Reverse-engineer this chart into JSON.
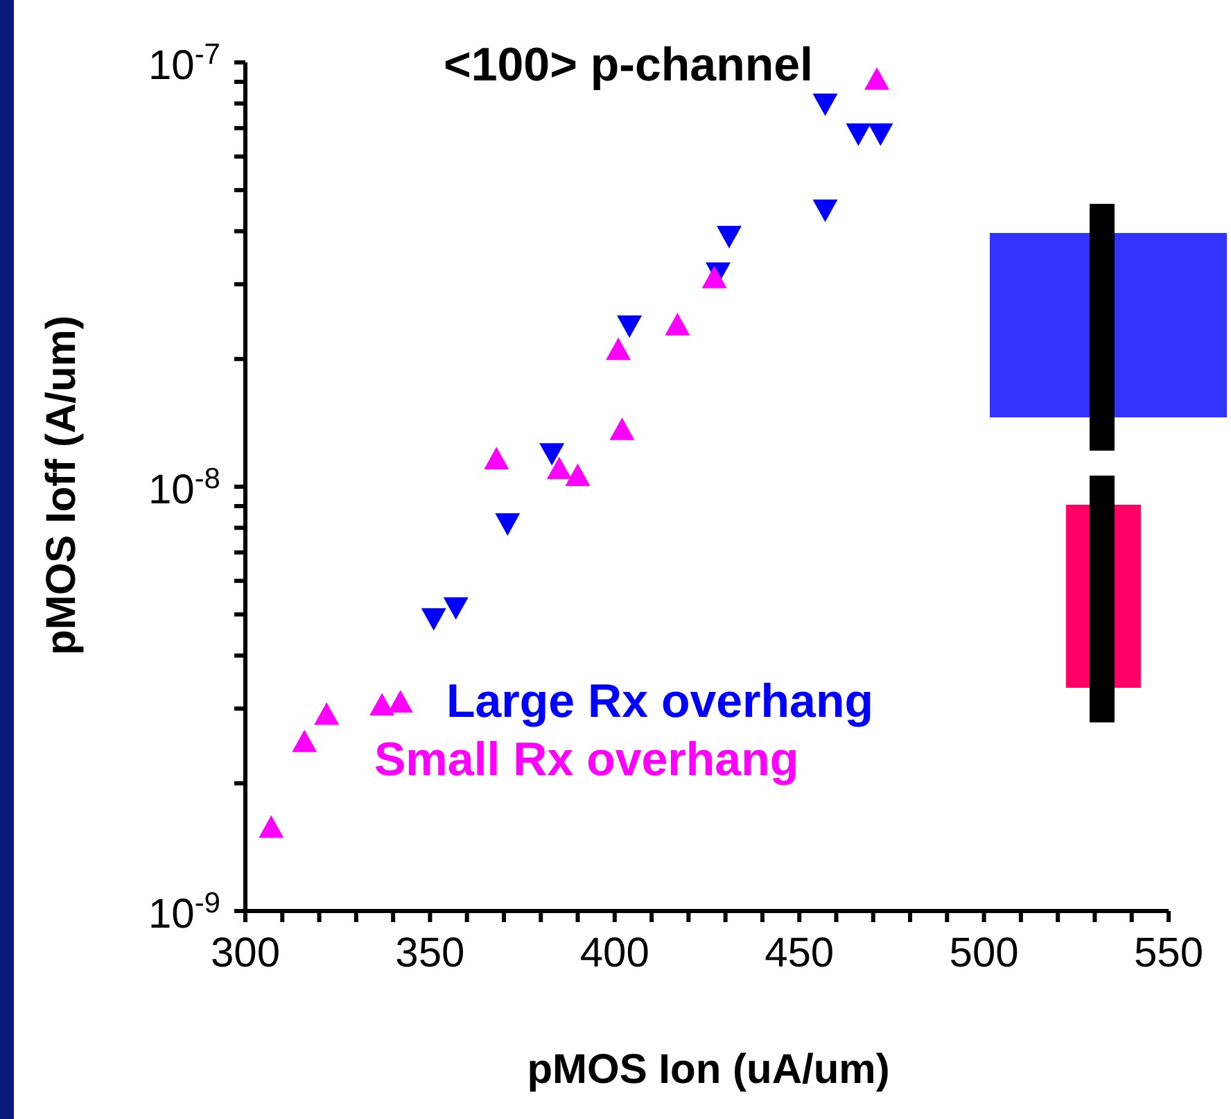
{
  "chart_data": {
    "type": "scatter",
    "title": "<100> p-channel",
    "xlabel": "pMOS Ion (uA/um)",
    "ylabel": "pMOS Ioff (A/um)",
    "log": "y",
    "legend": "bottom",
    "marker": "triangle",
    "xlim": [
      300,
      550
    ],
    "xticks": [
      300,
      {
        "value": 310,
        "label": null
      },
      {
        "value": 320,
        "label": null
      },
      {
        "value": 330,
        "label": null
      },
      {
        "value": 340,
        "label": null
      },
      350,
      {
        "value": 360,
        "label": null
      },
      {
        "value": 370,
        "label": null
      },
      {
        "value": 380,
        "label": null
      },
      {
        "value": 390,
        "label": null
      },
      400,
      {
        "value": 410,
        "label": null
      },
      {
        "value": 420,
        "label": null
      },
      {
        "value": 430,
        "label": null
      },
      {
        "value": 440,
        "label": null
      },
      450,
      {
        "value": 460,
        "label": null
      },
      {
        "value": 470,
        "label": null
      },
      {
        "value": 480,
        "label": null
      },
      {
        "value": 490,
        "label": null
      },
      500,
      {
        "value": 510,
        "label": null
      },
      {
        "value": 520,
        "label": null
      },
      {
        "value": 530,
        "label": null
      },
      {
        "value": 540,
        "label": null
      },
      550
    ],
    "ylim": [
      1e-09,
      1e-07
    ],
    "yticks": [
      {
        "value": 1e-09,
        "label": "10$^{-9}$"
      },
      {
        "value": 2e-09,
        "label": null
      },
      {
        "value": 3e-09,
        "label": null
      },
      {
        "value": 4e-09,
        "label": null
      },
      {
        "value": 5e-09,
        "label": null
      },
      {
        "value": 6e-09,
        "label": null
      },
      {
        "value": 7e-09,
        "label": null
      },
      {
        "value": 8e-09,
        "label": null
      },
      {
        "value": 9e-09,
        "label": null
      },
      {
        "value": 1e-08,
        "label": "10$^{-8}$"
      },
      {
        "value": 2e-08,
        "label": null
      },
      {
        "value": 3e-08,
        "label": null
      },
      {
        "value": 4e-08,
        "label": null
      },
      {
        "value": 5e-08,
        "label": null
      },
      {
        "value": 6e-08,
        "label": null
      },
      {
        "value": 7e-08,
        "label": null
      },
      {
        "value": 8e-08,
        "label": null
      },
      {
        "value": 9e-08,
        "label": null
      },
      {
        "value": 1e-07,
        "label": "10$^{-7}$"
      }
    ],
    "series": [
      {
        "name": "Large Rx overhang",
        "color": "#0000ff",
        "x": [
          457,
          466,
          472,
          457,
          431,
          428,
          404,
          383,
          371,
          357,
          351
        ],
        "values": [
          8e-08,
          6.8e-08,
          6.8e-08,
          4.5e-08,
          3.9e-08,
          3.2e-08,
          2.4e-08,
          1.2e-08,
          8.2e-09,
          5.2e-09,
          4.9e-09
        ]
      },
      {
        "name": "Small Rx overhang",
        "color": "#ff00ff",
        "x": [
          471,
          427,
          417,
          401,
          402,
          368,
          385,
          390,
          342,
          337,
          322,
          316,
          307
        ],
        "values": [
          9.1e-08,
          3.1e-08,
          2.4e-08,
          2.1e-08,
          1.36e-08,
          1.16e-08,
          1.1e-08,
          1.06e-08,
          3.1e-09,
          3.05e-09,
          2.9e-09,
          2.5e-09,
          1.57e-09
        ]
      }
    ]
  }
}
